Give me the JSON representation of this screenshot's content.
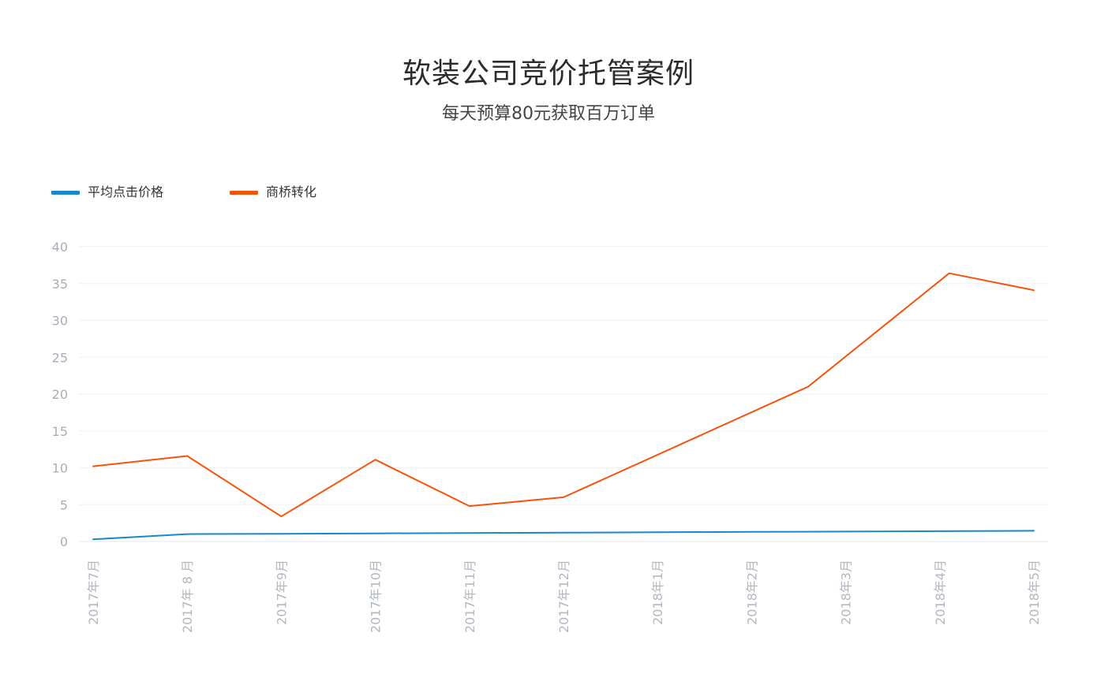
{
  "title": "软装公司竞价托管案例",
  "subtitle": "每天预算80元获取百万订单",
  "chart_data": {
    "type": "line",
    "title": "软装公司竞价托管案例",
    "subtitle": "每天预算80元获取百万订单",
    "categories": [
      "2017年7月",
      "2017年 8 月",
      "2017年9月",
      "2017年10月",
      "2017年11月",
      "2017年12月",
      "2018年1月",
      "2018年2月",
      "2018年3月",
      "2018年4月",
      "2018年5月"
    ],
    "y_ticks": [
      "0",
      "5",
      "10",
      "15",
      "20",
      "25",
      "30",
      "35",
      "40"
    ],
    "ylim": [
      0,
      40
    ],
    "grid": true,
    "legend_position": "top-left",
    "series": [
      {
        "name": "平均点击价格",
        "color": "#1a87c9",
        "x": [
          0,
          1,
          2,
          3,
          4,
          5,
          6,
          7,
          8,
          9,
          10
        ],
        "values": [
          0.3,
          1.0,
          1.05,
          1.1,
          1.15,
          1.2,
          1.25,
          1.3,
          1.35,
          1.4,
          1.45
        ]
      },
      {
        "name": "商桥转化",
        "color": "#f5520c",
        "x": [
          0,
          1,
          2,
          3,
          4,
          5,
          7.6,
          9.1
        ],
        "values": [
          10.2,
          11.6,
          3.4,
          11.1,
          4.8,
          6.0,
          21.0,
          36.4
        ],
        "x_tail": [
          10
        ],
        "values_tail": [
          34.1
        ]
      }
    ]
  }
}
